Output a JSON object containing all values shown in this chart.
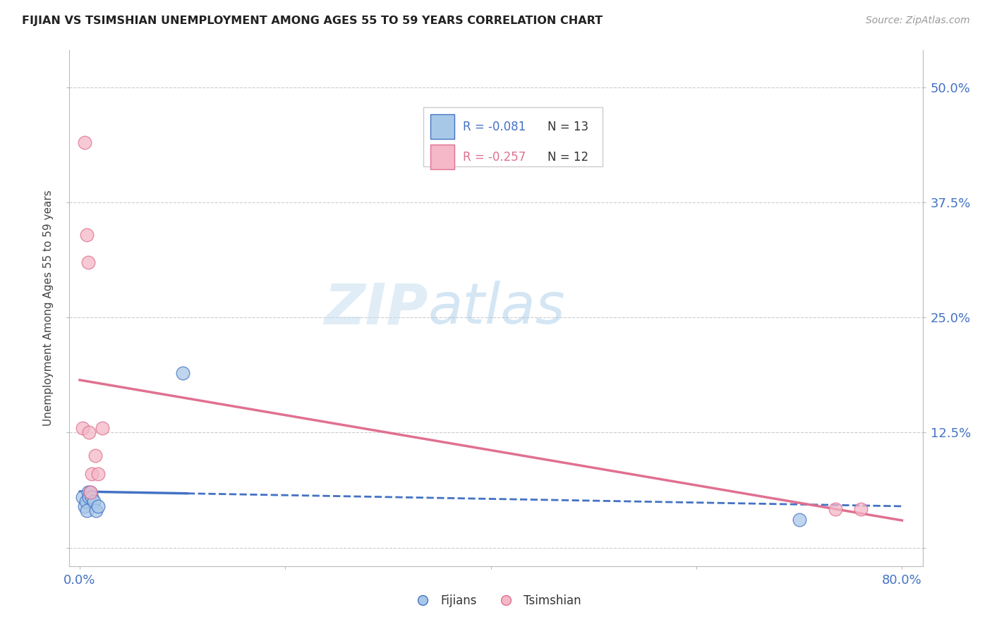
{
  "title": "FIJIAN VS TSIMSHIAN UNEMPLOYMENT AMONG AGES 55 TO 59 YEARS CORRELATION CHART",
  "source": "Source: ZipAtlas.com",
  "ylabel": "Unemployment Among Ages 55 to 59 years",
  "xlim": [
    -0.01,
    0.82
  ],
  "ylim": [
    -0.02,
    0.54
  ],
  "x_ticks": [
    0.0,
    0.2,
    0.4,
    0.6,
    0.8
  ],
  "x_tick_labels": [
    "0.0%",
    "",
    "",
    "",
    "80.0%"
  ],
  "y_ticks": [
    0.0,
    0.125,
    0.25,
    0.375,
    0.5
  ],
  "y_tick_labels": [
    "",
    "12.5%",
    "25.0%",
    "37.5%",
    "50.0%"
  ],
  "fijians_x": [
    0.003,
    0.005,
    0.006,
    0.007,
    0.008,
    0.009,
    0.01,
    0.012,
    0.014,
    0.016,
    0.018,
    0.1,
    0.7
  ],
  "fijians_y": [
    0.055,
    0.045,
    0.05,
    0.04,
    0.06,
    0.055,
    0.06,
    0.055,
    0.05,
    0.04,
    0.045,
    0.19,
    0.03
  ],
  "tsimshian_x": [
    0.003,
    0.005,
    0.007,
    0.008,
    0.009,
    0.01,
    0.012,
    0.015,
    0.018,
    0.022,
    0.735,
    0.76
  ],
  "tsimshian_y": [
    0.13,
    0.44,
    0.34,
    0.31,
    0.125,
    0.06,
    0.08,
    0.1,
    0.08,
    0.13,
    0.042,
    0.042
  ],
  "fijians_color": "#a8c8e8",
  "tsimshian_color": "#f4b8c8",
  "fijians_line_color": "#4472c4",
  "tsimshian_line_color": "#e07090",
  "legend_r_fijians": "R = -0.081",
  "legend_n_fijians": "N = 13",
  "legend_r_tsimshian": "R = -0.257",
  "legend_n_tsimshian": "N = 12",
  "watermark_zip": "ZIP",
  "watermark_atlas": "atlas",
  "background_color": "#ffffff",
  "axis_color": "#4472c4",
  "grid_color": "#cccccc",
  "title_color": "#222222",
  "source_color": "#999999",
  "fijians_label": "Fijians",
  "tsimshian_label": "Tsimshian"
}
